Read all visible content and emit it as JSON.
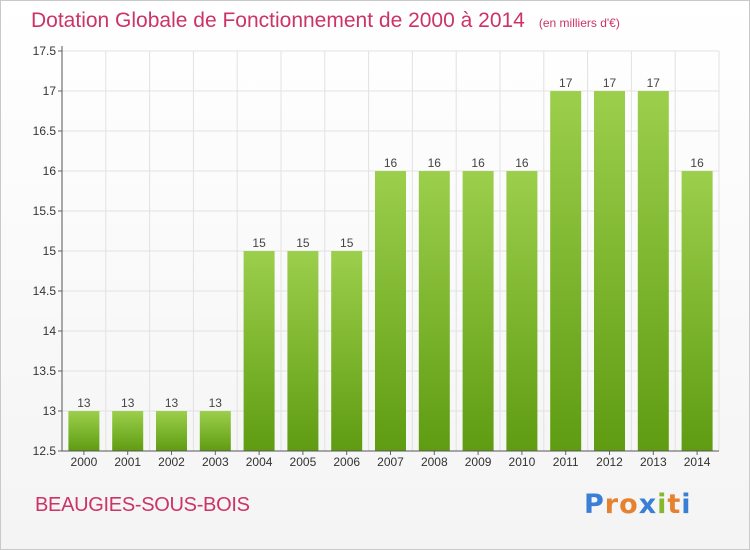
{
  "title": "Dotation Globale de Fonctionnement de 2000 à 2014",
  "subtitle": "(en milliers d'€)",
  "commune": "BEAUGIES-SOUS-BOIS",
  "logo": {
    "text": "Proxiti",
    "colors": [
      "#3a7fd5",
      "#e6812f",
      "#e6812f",
      "#3a7fd5",
      "#85b82f",
      "#e6812f",
      "#3a7fd5"
    ]
  },
  "colors": {
    "accent": "#cc3366",
    "bar_light": "#9ccf4c",
    "bar_dark": "#5f9c12"
  },
  "chart_data": {
    "type": "bar",
    "categories": [
      "2000",
      "2001",
      "2002",
      "2003",
      "2004",
      "2005",
      "2006",
      "2007",
      "2008",
      "2009",
      "2010",
      "2011",
      "2012",
      "2013",
      "2014"
    ],
    "values": [
      13,
      13,
      13,
      13,
      15,
      15,
      15,
      16,
      16,
      16,
      16,
      17,
      17,
      17,
      16
    ],
    "labels": [
      "13",
      "13",
      "13",
      "13",
      "15",
      "15",
      "15",
      "16",
      "16",
      "16",
      "16",
      "17",
      "17",
      "17",
      "16"
    ],
    "ylim": [
      12.5,
      17.5
    ],
    "yticks": [
      12.5,
      13,
      13.5,
      14,
      14.5,
      15,
      15.5,
      16,
      16.5,
      17,
      17.5
    ],
    "ytick_labels": [
      "12.5",
      "13",
      "13.5",
      "14",
      "14.5",
      "15",
      "15.5",
      "16",
      "16.5",
      "17",
      "17.5"
    ],
    "grid": true,
    "xlabel": "",
    "ylabel": ""
  }
}
